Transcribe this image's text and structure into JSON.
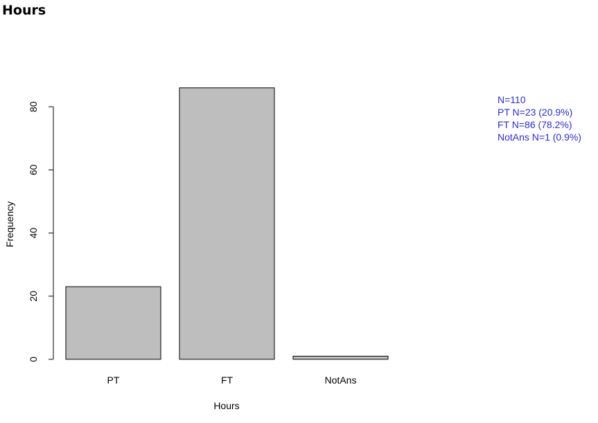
{
  "page": {
    "title": "Hours"
  },
  "chart_data": {
    "type": "bar",
    "categories": [
      "PT",
      "FT",
      "NotAns"
    ],
    "values": [
      23,
      86,
      1
    ],
    "title": "",
    "xlabel": "Hours",
    "ylabel": "Frequency",
    "ylim": [
      0,
      86
    ],
    "yticks": [
      0,
      20,
      40,
      60,
      80
    ],
    "grid": false,
    "bar_color": "#bebebe",
    "bar_edge_color": "#000000",
    "annotation_color": "#2a2ae0",
    "annotation_lines": [
      "N=110",
      "PT N=23 (20.9%)",
      "FT N=86 (78.2%)",
      "NotAns N=1 (0.9%)"
    ]
  }
}
